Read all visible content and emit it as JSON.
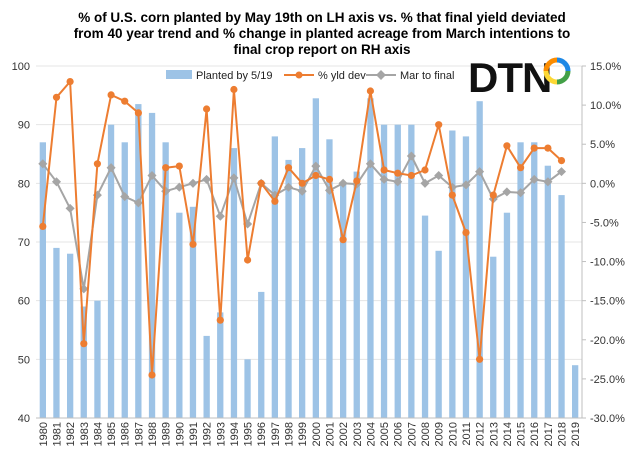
{
  "title_lines": [
    "%  of U.S.  corn planted by May 19th on LH axis vs. %  that final yield deviated",
    "from 40 year trend and % change in planted acreage from March intentions to",
    "final crop report on RH axis"
  ],
  "logo": {
    "text": "DTN",
    "colors": [
      "#1e88e5",
      "#43a047",
      "#fdd835",
      "#fb8c00"
    ]
  },
  "colors": {
    "bars": "#9dc3e6",
    "yield_line": "#ed7d31",
    "mar_line": "#a5a5a5"
  },
  "chart_data": {
    "type": "bar",
    "categories": [
      "1980",
      "1981",
      "1982",
      "1983",
      "1984",
      "1985",
      "1986",
      "1987",
      "1988",
      "1989",
      "1990",
      "1991",
      "1992",
      "1993",
      "1994",
      "1995",
      "1996",
      "1997",
      "1998",
      "1999",
      "2000",
      "2001",
      "2002",
      "2003",
      "2004",
      "2005",
      "2006",
      "2007",
      "2008",
      "2009",
      "2010",
      "2011",
      "2012",
      "2013",
      "2014",
      "2015",
      "2016",
      "2017",
      "2018",
      "2019"
    ],
    "y_left": {
      "min": 40,
      "max": 100,
      "step": 10,
      "ticks": [
        "40",
        "50",
        "60",
        "70",
        "80",
        "90",
        "100"
      ]
    },
    "y_right": {
      "min": -30,
      "max": 15,
      "step": 5,
      "ticks": [
        "-30.0%",
        "-25.0%",
        "-20.0%",
        "-15.0%",
        "-10.0%",
        "-5.0%",
        "0.0%",
        "5.0%",
        "10.0%",
        "15.0%"
      ]
    },
    "legend_position": "top",
    "series": [
      {
        "name": "Planted by 5/19",
        "type": "bar",
        "axis": "left",
        "values": [
          87,
          69,
          68,
          59,
          60,
          90,
          87,
          93.5,
          92,
          87,
          75,
          76,
          54,
          58,
          86,
          50,
          61.5,
          88,
          84,
          86,
          94.5,
          87.5,
          80,
          82,
          94.5,
          90,
          90,
          90,
          74.5,
          68.5,
          89,
          88,
          94,
          67.5,
          75,
          87,
          87,
          83,
          78,
          49
        ]
      },
      {
        "name": "% yld dev",
        "type": "line",
        "axis": "right",
        "values": [
          -5.5,
          11,
          13,
          -20.5,
          2.5,
          11.3,
          10.5,
          9,
          -24.5,
          2,
          2.2,
          -7.8,
          9.5,
          -17.5,
          12,
          -9.8,
          0,
          -2.3,
          2,
          0,
          1,
          0.5,
          -7.2,
          0.3,
          11.8,
          1.7,
          1.3,
          1,
          1.7,
          7.5,
          -1.5,
          -6.3,
          -22.5,
          -1.5,
          4.8,
          2,
          4.5,
          4.5,
          2.9,
          null
        ]
      },
      {
        "name": "Mar to final",
        "type": "line",
        "axis": "right",
        "values": [
          2.5,
          0.2,
          -3.2,
          -13.5,
          -1.5,
          2,
          -1.7,
          -2.5,
          1,
          -1,
          -0.5,
          0,
          0.5,
          -4.2,
          0.7,
          -5.2,
          0,
          -1.5,
          -0.5,
          -1,
          2.2,
          -0.9,
          0,
          -0.1,
          2.5,
          0.5,
          0.2,
          3.5,
          0,
          1,
          -0.5,
          -0.2,
          1.5,
          -2,
          -1.1,
          -1.2,
          0.5,
          0.2,
          1.5,
          null
        ]
      }
    ]
  }
}
